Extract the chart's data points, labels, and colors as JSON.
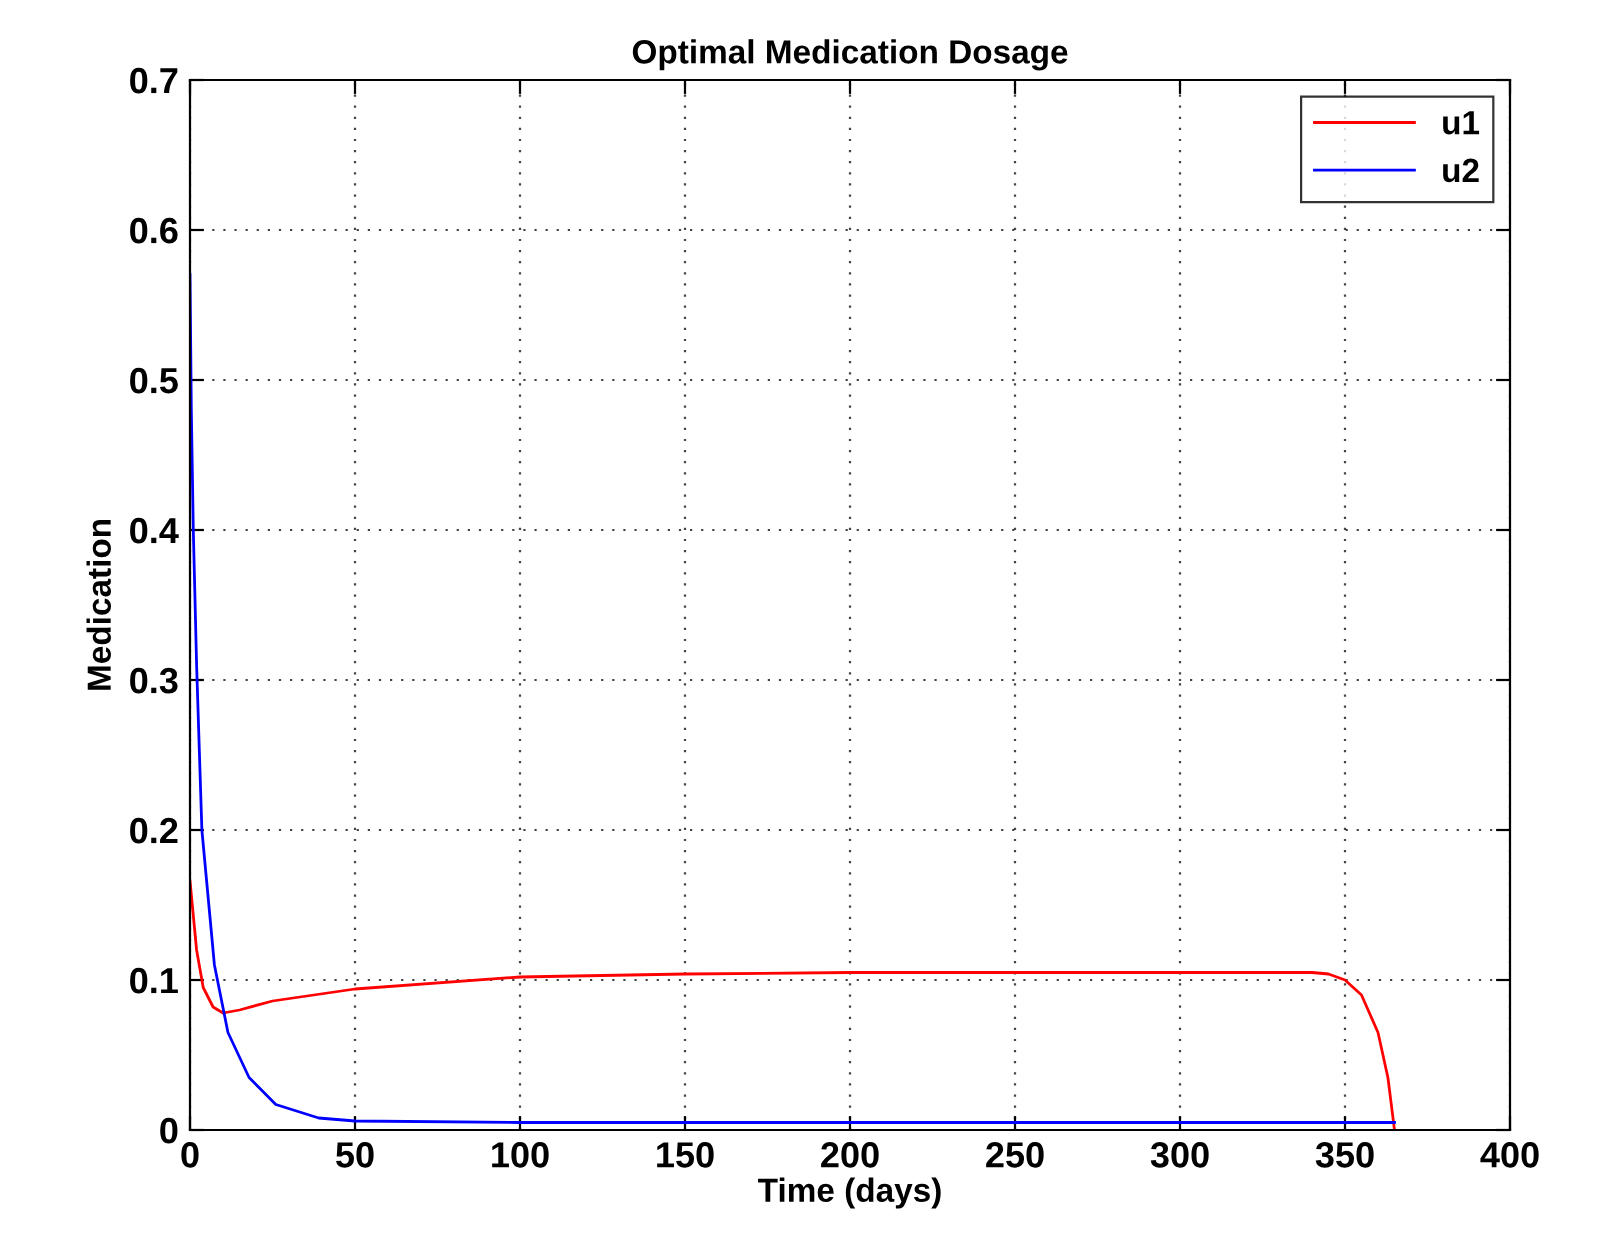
{
  "chart_data": {
    "type": "line",
    "title": "Optimal Medication Dosage",
    "xlabel": "Time (days)",
    "ylabel": "Medication",
    "xlim": [
      0,
      400
    ],
    "xticks": [
      0,
      50,
      100,
      150,
      200,
      250,
      300,
      350,
      400
    ],
    "ylim": [
      0,
      0.7
    ],
    "yticks": [
      0,
      0.1,
      0.2,
      0.3,
      0.4,
      0.5,
      0.6,
      0.7
    ],
    "grid": true,
    "legend": "top right",
    "line_style": "solid",
    "series": [
      {
        "name": "u1",
        "color": "#ff0000",
        "x": [
          0,
          2,
          4,
          7,
          10,
          15,
          25,
          50,
          100,
          150,
          200,
          340,
          345,
          350,
          355,
          360,
          363,
          365
        ],
        "values": [
          0.166,
          0.12,
          0.095,
          0.082,
          0.078,
          0.08,
          0.086,
          0.094,
          0.102,
          0.104,
          0.105,
          0.105,
          0.104,
          0.1,
          0.09,
          0.065,
          0.035,
          0
        ]
      },
      {
        "name": "u2",
        "color": "#0000ff",
        "x": [
          0,
          0.4,
          1,
          2,
          3.6,
          7.4,
          11.5,
          17.9,
          26,
          39,
          50,
          100,
          365
        ],
        "values": [
          0.57,
          0.48,
          0.4,
          0.31,
          0.2,
          0.11,
          0.065,
          0.035,
          0.017,
          0.008,
          0.006,
          0.005,
          0.005
        ]
      }
    ]
  }
}
